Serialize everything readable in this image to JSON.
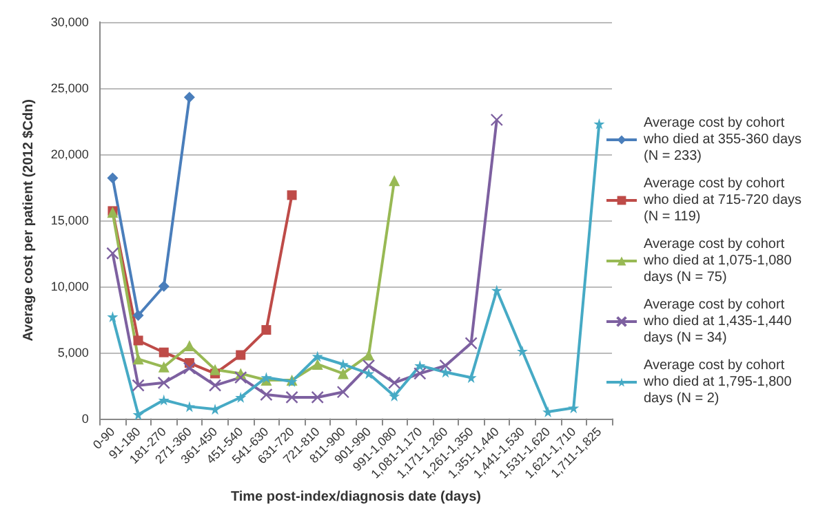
{
  "chart_data": {
    "type": "line",
    "xlabel": "Time post-index/diagnosis date (days)",
    "ylabel": "Average cost per patient (2012 $Cdn)",
    "categories": [
      "0-90",
      "91-180",
      "181-270",
      "271-360",
      "361-450",
      "451-540",
      "541-630",
      "631-720",
      "721-810",
      "811-900",
      "901-990",
      "991-1,080",
      "1,081-1,170",
      "1,171-1,260",
      "1,261-1,350",
      "1,351-1,440",
      "1,441-1,530",
      "1,531-1,620",
      "1,621-1,710",
      "1,711-1,825"
    ],
    "series": [
      {
        "name": "Average cost by cohort who died at 355-360 days (N = 233)",
        "color": "#4a7ebb",
        "marker": "diamond",
        "values": [
          18200,
          7800,
          10000,
          24300,
          null,
          null,
          null,
          null,
          null,
          null,
          null,
          null,
          null,
          null,
          null,
          null,
          null,
          null,
          null,
          null
        ]
      },
      {
        "name": "Average cost by cohort who died at 715-720 days (N = 119)",
        "color": "#be4b48",
        "marker": "square",
        "values": [
          15700,
          5900,
          5000,
          4200,
          3400,
          4800,
          6700,
          16900,
          null,
          null,
          null,
          null,
          null,
          null,
          null,
          null,
          null,
          null,
          null,
          null
        ]
      },
      {
        "name": "Average cost by cohort who died at 1,075-1,080 days (N = 75)",
        "color": "#98b954",
        "marker": "triangle",
        "values": [
          15600,
          4500,
          3900,
          5500,
          3700,
          3400,
          2900,
          2900,
          4100,
          3400,
          4800,
          18000,
          null,
          null,
          null,
          null,
          null,
          null,
          null,
          null
        ]
      },
      {
        "name": "Average cost by cohort who died at 1,435-1,440 days (N = 34)",
        "color": "#7d60a0",
        "marker": "cross",
        "values": [
          12500,
          2500,
          2700,
          3800,
          2500,
          3100,
          1800,
          1600,
          1600,
          2000,
          4000,
          2700,
          3400,
          4000,
          5700,
          22600,
          null,
          null,
          null,
          null
        ]
      },
      {
        "name": "Average cost by cohort who died at 1,795-1,800 days (N = 2)",
        "color": "#46aac5",
        "marker": "star",
        "values": [
          7700,
          300,
          1400,
          900,
          700,
          1600,
          3100,
          2800,
          4700,
          4100,
          3400,
          1700,
          4000,
          3500,
          3100,
          9700,
          5100,
          500,
          800,
          22300
        ]
      }
    ],
    "ylim": [
      0,
      30000
    ],
    "yticks": [
      0,
      {
        "value": 5000,
        "label": "5,000"
      },
      {
        "value": 10000,
        "label": "10,000"
      },
      {
        "value": 15000,
        "label": "15,000"
      },
      {
        "value": 20000,
        "label": "20,000"
      },
      {
        "value": 25000,
        "label": "25,000"
      },
      {
        "value": 30000,
        "label": "30,000"
      }
    ],
    "grid": "y",
    "legend": "right",
    "line_style": "solid"
  }
}
